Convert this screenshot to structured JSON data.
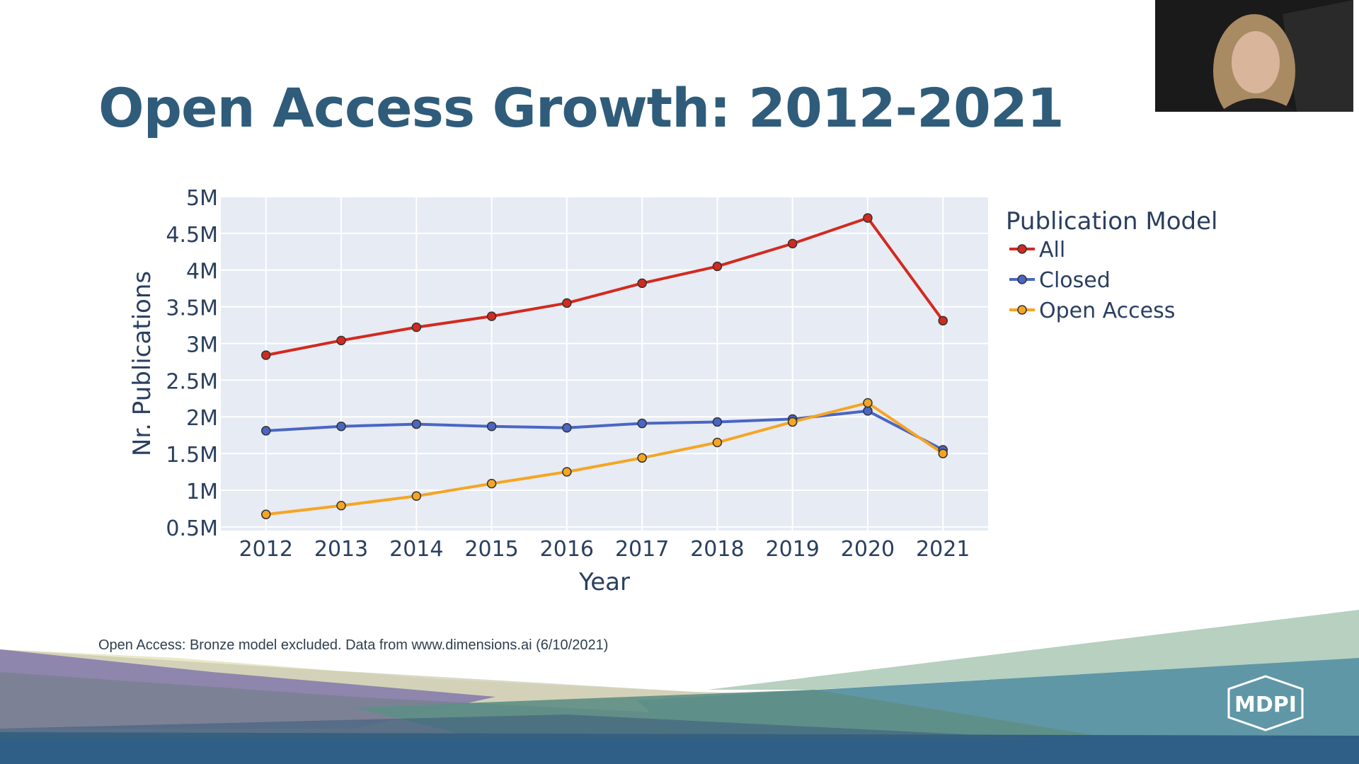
{
  "slide": {
    "title": "Open Access Growth: 2012-2021",
    "footnote": "Open Access: Bronze model excluded. Data from www.dimensions.ai (6/10/2021)",
    "logo_text": "MDPI"
  },
  "colors": {
    "title": "#2f5c7a",
    "plot_background": "#e6ebf4",
    "all": "#d22a1e",
    "closed": "#4a66c4",
    "open_access": "#f5a524"
  },
  "chart_data": {
    "type": "line",
    "title": "",
    "xlabel": "Year",
    "ylabel": "Nr. Publications",
    "x": [
      2012,
      2013,
      2014,
      2015,
      2016,
      2017,
      2018,
      2019,
      2020,
      2021
    ],
    "x_tick_labels": [
      "2012",
      "2013",
      "2014",
      "2015",
      "2016",
      "2017",
      "2018",
      "2019",
      "2020",
      "2021"
    ],
    "y_ticks": [
      500000,
      1000000,
      1500000,
      2000000,
      2500000,
      3000000,
      3500000,
      4000000,
      4500000,
      5000000
    ],
    "y_tick_labels": [
      "0.5M",
      "1M",
      "1.5M",
      "2M",
      "2.5M",
      "3M",
      "3.5M",
      "4M",
      "4.5M",
      "5M"
    ],
    "ylim": [
      450000,
      5000000
    ],
    "xlim": [
      2011.4,
      2021.6
    ],
    "grid": true,
    "legend": {
      "title": "Publication Model",
      "position": "right"
    },
    "series": [
      {
        "name": "All",
        "color": "#d22a1e",
        "values": [
          2840000,
          3040000,
          3220000,
          3370000,
          3550000,
          3820000,
          4050000,
          4360000,
          4710000,
          3310000
        ]
      },
      {
        "name": "Closed",
        "color": "#4a66c4",
        "values": [
          1810000,
          1870000,
          1900000,
          1870000,
          1850000,
          1910000,
          1930000,
          1970000,
          2080000,
          1550000
        ]
      },
      {
        "name": "Open Access",
        "color": "#f5a524",
        "values": [
          670000,
          790000,
          920000,
          1090000,
          1250000,
          1440000,
          1650000,
          1930000,
          2190000,
          1500000
        ]
      }
    ]
  }
}
